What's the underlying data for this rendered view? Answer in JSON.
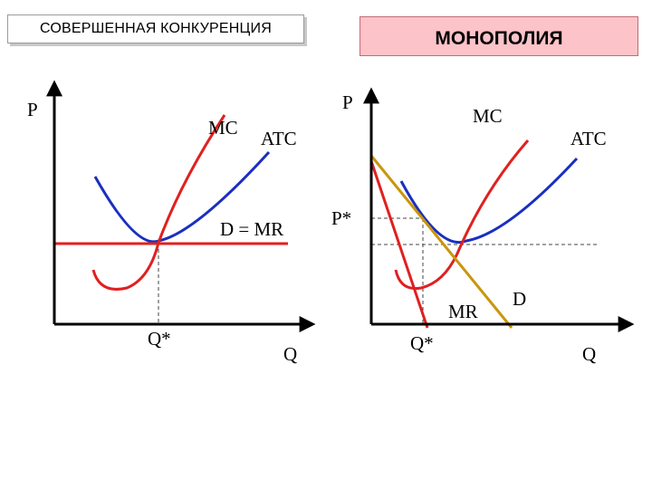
{
  "left_panel": {
    "title": "СОВЕРШЕННАЯ КОНКУРЕНЦИЯ",
    "y_axis": "P",
    "x_axis": "Q",
    "mc_label": "MC",
    "atc_label": "ATC",
    "dmr_label": "D = MR",
    "q_star": "Q*"
  },
  "right_panel": {
    "title": "МОНОПОЛИЯ",
    "y_axis": "P",
    "x_axis": "Q",
    "mc_label": "MC",
    "atc_label": "ATC",
    "p_star": "P*",
    "q_star": "Q*",
    "mr_label": "MR",
    "d_label": "D"
  },
  "colors": {
    "mc": "#e02020",
    "atc": "#1a2fc0",
    "demand": "#c9960c",
    "axis": "#000000",
    "dashed": "#444444"
  }
}
